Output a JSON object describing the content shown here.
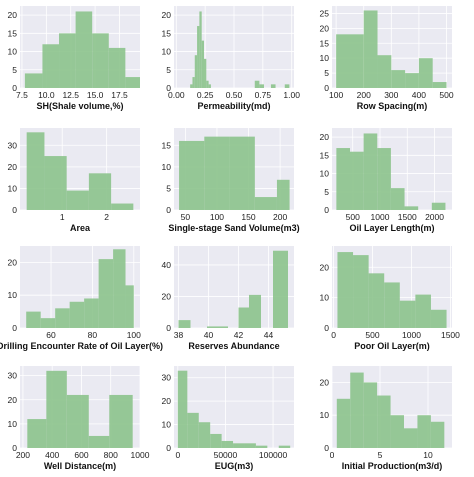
{
  "style": {
    "bar_color": "#8cc38c",
    "bar_opacity": 0.9,
    "plot_background": "#eaeaf2",
    "grid_color": "#ffffff"
  },
  "chart_data": [
    {
      "type": "bar",
      "xlabel": "SH(Shale volume,%)",
      "bins": [
        [
          7.8,
          9.6
        ],
        [
          9.6,
          11.3
        ],
        [
          11.3,
          13.0
        ],
        [
          13.0,
          14.7
        ],
        [
          14.7,
          16.4
        ],
        [
          16.4,
          18.1
        ]
      ],
      "extra_bins": [
        [
          18.1,
          19.6
        ]
      ],
      "counts": [
        4,
        12,
        15,
        21,
        15,
        11
      ],
      "extra_counts": [
        3
      ],
      "xlim": [
        7.3,
        19.6
      ],
      "ylim": [
        0,
        22.5
      ],
      "xticks": [
        7.5,
        10.0,
        12.5,
        15.0,
        17.5
      ],
      "xtick_labels": [
        "7.5",
        "10.0",
        "12.5",
        "15.0",
        "17.5"
      ],
      "yticks": [
        0,
        5,
        10,
        15,
        20
      ],
      "ytick_labels": [
        "0",
        "5",
        "10",
        "15",
        "20"
      ]
    },
    {
      "type": "bar",
      "xlabel": "Permeability(md)",
      "bins": [
        [
          0.12,
          0.14
        ],
        [
          0.14,
          0.16
        ],
        [
          0.16,
          0.18
        ],
        [
          0.18,
          0.2
        ],
        [
          0.2,
          0.22
        ],
        [
          0.22,
          0.24
        ],
        [
          0.24,
          0.26
        ],
        [
          0.26,
          0.28
        ],
        [
          0.28,
          0.3
        ],
        [
          0.68,
          0.72
        ],
        [
          0.72,
          0.76
        ],
        [
          0.82,
          0.86
        ],
        [
          0.94,
          0.98
        ]
      ],
      "counts": [
        1,
        3,
        9,
        17,
        21,
        13,
        8,
        2,
        1,
        2,
        1,
        1,
        1
      ],
      "xlim": [
        -0.02,
        1.02
      ],
      "ylim": [
        0,
        22.5
      ],
      "xticks": [
        0.0,
        0.25,
        0.5,
        0.75,
        1.0
      ],
      "xtick_labels": [
        "0.00",
        "0.25",
        "0.50",
        "0.75",
        "1.00"
      ],
      "yticks": [
        0,
        5,
        10,
        15,
        20
      ],
      "ytick_labels": [
        "0",
        "5",
        "10",
        "15",
        "20"
      ]
    },
    {
      "type": "bar",
      "xlabel": "Row Spacing(m)",
      "bins": [
        [
          100,
          200
        ],
        [
          200,
          250
        ],
        [
          250,
          300
        ],
        [
          300,
          350
        ],
        [
          350,
          400
        ],
        [
          400,
          450
        ],
        [
          450,
          500
        ]
      ],
      "counts": [
        18,
        26,
        11,
        6,
        5,
        10,
        2
      ],
      "xlim": [
        85,
        520
      ],
      "ylim": [
        0,
        27.5
      ],
      "xticks": [
        100,
        200,
        300,
        400,
        500
      ],
      "xtick_labels": [
        "100",
        "200",
        "300",
        "400",
        "500"
      ],
      "yticks": [
        0,
        5,
        10,
        15,
        20,
        25
      ],
      "ytick_labels": [
        "0",
        "5",
        "10",
        "15",
        "20",
        "25"
      ]
    },
    {
      "type": "bar",
      "xlabel": "Area",
      "bins": [
        [
          0.2,
          0.6
        ],
        [
          0.6,
          1.1
        ],
        [
          1.1,
          1.6
        ],
        [
          1.6,
          2.1
        ],
        [
          2.1,
          2.6
        ]
      ],
      "counts": [
        36,
        25,
        9,
        17,
        3
      ],
      "xlim": [
        0.05,
        2.75
      ],
      "ylim": [
        0,
        38
      ],
      "xticks": [
        1,
        2
      ],
      "xtick_labels": [
        "1",
        "2"
      ],
      "yticks": [
        0,
        10,
        20,
        30
      ],
      "ytick_labels": [
        "0",
        "10",
        "20",
        "30"
      ]
    },
    {
      "type": "bar",
      "xlabel": "Single-stage Sand Volume(m3)",
      "bins": [
        [
          40,
          80
        ],
        [
          80,
          120
        ],
        [
          120,
          160
        ],
        [
          160,
          195
        ],
        [
          195,
          215
        ]
      ],
      "counts": [
        16,
        17,
        17,
        3,
        7
      ],
      "xlim": [
        32,
        222
      ],
      "ylim": [
        0,
        19
      ],
      "xticks": [
        50,
        100,
        150,
        200
      ],
      "xtick_labels": [
        "50",
        "100",
        "150",
        "200"
      ],
      "yticks": [
        0,
        5,
        10,
        15
      ],
      "ytick_labels": [
        "0",
        "5",
        "10",
        "15"
      ]
    },
    {
      "type": "bar",
      "xlabel": "Oil Layer Length(m)",
      "bins": [
        [
          200,
          450
        ],
        [
          450,
          700
        ],
        [
          700,
          950
        ],
        [
          950,
          1200
        ],
        [
          1200,
          1450
        ],
        [
          1450,
          1700
        ],
        [
          1700,
          1950
        ],
        [
          1950,
          2200
        ]
      ],
      "counts": [
        17,
        16,
        21,
        17,
        6,
        1,
        0,
        2
      ],
      "xlim": [
        120,
        2320
      ],
      "ylim": [
        0,
        22.5
      ],
      "xticks": [
        500,
        1000,
        1500,
        2000
      ],
      "xtick_labels": [
        "500",
        "1000",
        "1500",
        "2000"
      ],
      "yticks": [
        0,
        5,
        10,
        15,
        20
      ],
      "ytick_labels": [
        "0",
        "5",
        "10",
        "15",
        "20"
      ]
    },
    {
      "type": "bar",
      "xlabel": "Drilling Encounter Rate of Oil Layer(%)",
      "bins": [
        [
          48,
          55
        ],
        [
          55,
          62
        ],
        [
          62,
          69
        ],
        [
          69,
          76
        ],
        [
          76,
          83
        ],
        [
          83,
          90
        ],
        [
          90,
          96
        ]
      ],
      "counts": [
        5,
        3,
        6,
        8,
        9,
        21,
        24
      ],
      "extra_counts": [
        13
      ],
      "extra_bins": [
        [
          96,
          100
        ]
      ],
      "xlim": [
        45,
        103
      ],
      "ylim": [
        0,
        25
      ],
      "xticks": [
        60,
        80,
        100
      ],
      "xtick_labels": [
        "60",
        "80",
        "100"
      ],
      "yticks": [
        0,
        10,
        20
      ],
      "ytick_labels": [
        "0",
        "10",
        "20"
      ]
    },
    {
      "type": "bar",
      "xlabel": "Reserves Abundance",
      "bins": [
        [
          38.0,
          38.8
        ],
        [
          39.9,
          41.3
        ],
        [
          42.0,
          42.7
        ],
        [
          42.7,
          43.5
        ],
        [
          44.3,
          45.3
        ]
      ],
      "counts": [
        5,
        1,
        13,
        21,
        49
      ],
      "xlim": [
        37.7,
        45.7
      ],
      "ylim": [
        0,
        52
      ],
      "xticks": [
        38,
        40,
        42,
        44
      ],
      "xtick_labels": [
        "38",
        "40",
        "42",
        "44"
      ],
      "yticks": [
        0,
        20,
        40
      ],
      "ytick_labels": [
        "0",
        "20",
        "40"
      ]
    },
    {
      "type": "bar",
      "xlabel": "Poor Oil Layer(m)",
      "bins": [
        [
          50,
          250
        ],
        [
          250,
          450
        ],
        [
          450,
          650
        ],
        [
          650,
          850
        ],
        [
          850,
          1050
        ],
        [
          1050,
          1250
        ],
        [
          1250,
          1450
        ]
      ],
      "counts": [
        25,
        24,
        18,
        15,
        9,
        11,
        6
      ],
      "xlim": [
        -20,
        1520
      ],
      "ylim": [
        0,
        27
      ],
      "xticks": [
        0,
        500,
        1000,
        1500
      ],
      "xtick_labels": [
        "0",
        "500",
        "1000",
        "1500"
      ],
      "yticks": [
        0,
        10,
        20
      ],
      "ytick_labels": [
        "0",
        "10",
        "20"
      ]
    },
    {
      "type": "bar",
      "xlabel": "Well Distance(m)",
      "bins": [
        [
          230,
          360
        ],
        [
          360,
          500
        ],
        [
          500,
          650
        ],
        [
          650,
          790
        ],
        [
          790,
          950
        ]
      ],
      "counts": [
        12,
        32,
        22,
        5,
        22
      ],
      "xlim": [
        180,
        1000
      ],
      "ylim": [
        0,
        34
      ],
      "xticks": [
        200,
        400,
        600,
        800,
        1000
      ],
      "xtick_labels": [
        "200",
        "400",
        "600",
        "800",
        "1000"
      ],
      "yticks": [
        0,
        10,
        20,
        30
      ],
      "ytick_labels": [
        "0",
        "10",
        "20",
        "30"
      ]
    },
    {
      "type": "bar",
      "xlabel": "EUG(m3)",
      "bins": [
        [
          0,
          10000
        ],
        [
          10000,
          22000
        ],
        [
          22000,
          34000
        ],
        [
          34000,
          46000
        ],
        [
          46000,
          58000
        ],
        [
          58000,
          70000
        ],
        [
          70000,
          82000
        ],
        [
          82000,
          94000
        ],
        [
          94000,
          106000
        ],
        [
          106000,
          118000
        ]
      ],
      "counts": [
        33,
        15,
        11,
        6,
        3,
        2,
        2,
        1,
        0,
        1
      ],
      "xlim": [
        -4000,
        122000
      ],
      "ylim": [
        0,
        35
      ],
      "xticks": [
        0,
        50000,
        100000
      ],
      "xtick_labels": [
        "0",
        "50000",
        "100000"
      ],
      "yticks": [
        0,
        10,
        20,
        30
      ],
      "ytick_labels": [
        "0",
        "10",
        "20",
        "30"
      ]
    },
    {
      "type": "bar",
      "xlabel": "Initial Production(m3/d)",
      "bins": [
        [
          0.5,
          1.9
        ],
        [
          1.9,
          3.3
        ],
        [
          3.3,
          4.7
        ],
        [
          4.7,
          6.1
        ],
        [
          6.1,
          7.5
        ],
        [
          7.5,
          8.9
        ],
        [
          8.9,
          10.3
        ],
        [
          10.3,
          11.7
        ]
      ],
      "counts": [
        15,
        23,
        20,
        16,
        10,
        6,
        10,
        8
      ],
      "xlim": [
        0,
        12.5
      ],
      "ylim": [
        0,
        25
      ],
      "xticks": [
        0,
        5,
        10
      ],
      "xtick_labels": [
        "0",
        "5",
        "10"
      ],
      "yticks": [
        0,
        10,
        20
      ],
      "ytick_labels": [
        "0",
        "10",
        "20"
      ]
    }
  ]
}
